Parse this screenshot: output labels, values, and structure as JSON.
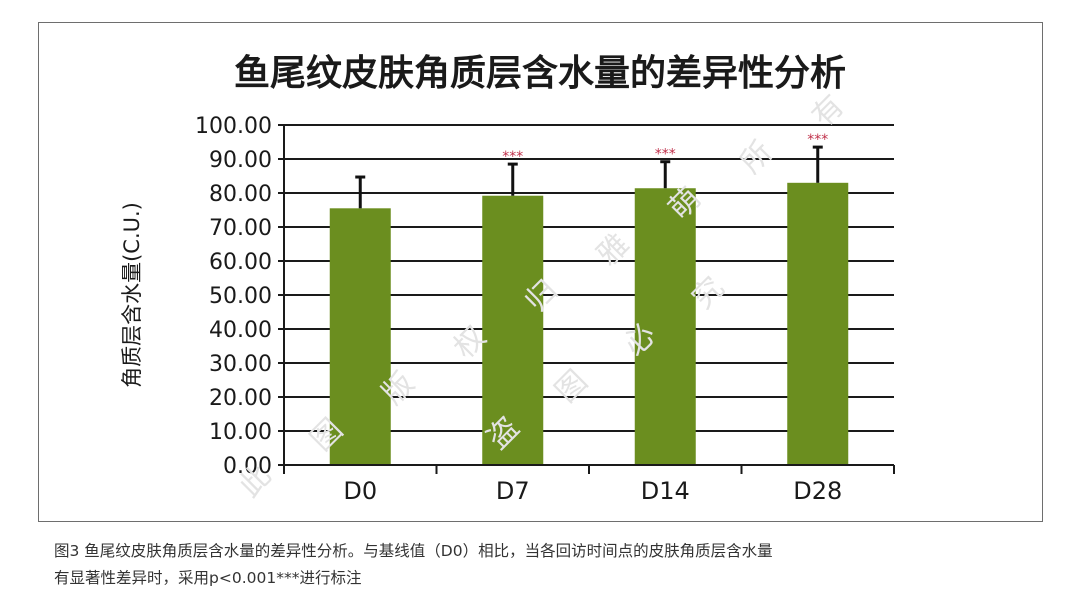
{
  "chart_data": {
    "type": "bar",
    "title": "鱼尾纹皮肤角质层含水量的差异性分析",
    "ylabel": "角质层含水量(C.U.)",
    "xlabel": "",
    "categories": [
      "D0",
      "D7",
      "D14",
      "D28"
    ],
    "values": [
      75.5,
      79.2,
      81.4,
      83.0
    ],
    "error": [
      9.2,
      9.3,
      7.8,
      10.5
    ],
    "annotations": [
      "",
      "***",
      "***",
      "***"
    ],
    "ylim": [
      0,
      100
    ],
    "yticks": [
      "0.00",
      "10.00",
      "20.00",
      "30.00",
      "40.00",
      "50.00",
      "60.00",
      "70.00",
      "80.00",
      "90.00",
      "100.00"
    ],
    "grid": true,
    "bar_color": "#6b8e1f",
    "significance_color": "#c0304a"
  },
  "caption": {
    "line1": "图3 鱼尾纹皮肤角质层含水量的差异性分析。与基线值（D0）相比，当各回访时间点的皮肤角质层含水量",
    "line2": "有显著性差异时，采用p<0.001***进行标注"
  },
  "watermark": {
    "chars": [
      "此",
      "图",
      "版",
      "权",
      "归",
      "雅",
      "萌",
      "所",
      "有",
      "盗",
      "图",
      "必",
      "究"
    ],
    "color": "#e3e3e3"
  }
}
